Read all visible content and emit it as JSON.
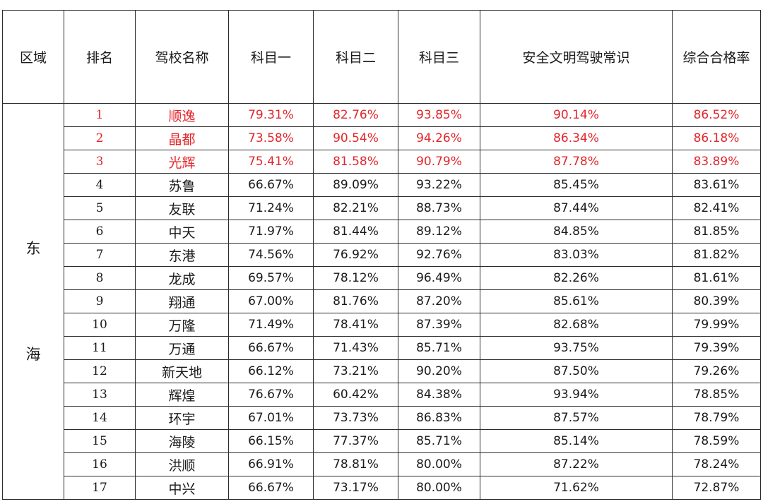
{
  "headers": [
    "区域",
    "排名",
    "驾校名称",
    "科目一",
    "科目二",
    "科目三",
    "安全文明驾驶常识",
    "综合合格率"
  ],
  "region": {
    "line1": "东",
    "line2": "海"
  },
  "highlight_color": "#e3262b",
  "rows": [
    {
      "rank": "1",
      "name": "顺逸",
      "k1": "79.31%",
      "k2": "82.76%",
      "k3": "93.85%",
      "safety": "90.14%",
      "overall": "86.52%",
      "top": true
    },
    {
      "rank": "2",
      "name": "晶都",
      "k1": "73.58%",
      "k2": "90.54%",
      "k3": "94.26%",
      "safety": "86.34%",
      "overall": "86.18%",
      "top": true
    },
    {
      "rank": "3",
      "name": "光辉",
      "k1": "75.41%",
      "k2": "81.58%",
      "k3": "90.79%",
      "safety": "87.78%",
      "overall": "83.89%",
      "top": true
    },
    {
      "rank": "4",
      "name": "苏鲁",
      "k1": "66.67%",
      "k2": "89.09%",
      "k3": "93.22%",
      "safety": "85.45%",
      "overall": "83.61%",
      "top": false
    },
    {
      "rank": "5",
      "name": "友联",
      "k1": "71.24%",
      "k2": "82.21%",
      "k3": "88.73%",
      "safety": "87.44%",
      "overall": "82.41%",
      "top": false
    },
    {
      "rank": "6",
      "name": "中天",
      "k1": "71.97%",
      "k2": "81.44%",
      "k3": "89.12%",
      "safety": "84.85%",
      "overall": "81.85%",
      "top": false
    },
    {
      "rank": "7",
      "name": "东港",
      "k1": "74.56%",
      "k2": "76.92%",
      "k3": "92.76%",
      "safety": "83.03%",
      "overall": "81.82%",
      "top": false
    },
    {
      "rank": "8",
      "name": "龙成",
      "k1": "69.57%",
      "k2": "78.12%",
      "k3": "96.49%",
      "safety": "82.26%",
      "overall": "81.61%",
      "top": false
    },
    {
      "rank": "9",
      "name": "翔通",
      "k1": "67.00%",
      "k2": "81.76%",
      "k3": "87.20%",
      "safety": "85.61%",
      "overall": "80.39%",
      "top": false
    },
    {
      "rank": "10",
      "name": "万隆",
      "k1": "71.49%",
      "k2": "78.41%",
      "k3": "87.39%",
      "safety": "82.68%",
      "overall": "79.99%",
      "top": false
    },
    {
      "rank": "11",
      "name": "万通",
      "k1": "66.67%",
      "k2": "71.43%",
      "k3": "85.71%",
      "safety": "93.75%",
      "overall": "79.39%",
      "top": false
    },
    {
      "rank": "12",
      "name": "新天地",
      "k1": "66.12%",
      "k2": "73.21%",
      "k3": "90.20%",
      "safety": "87.50%",
      "overall": "79.26%",
      "top": false
    },
    {
      "rank": "13",
      "name": "辉煌",
      "k1": "76.67%",
      "k2": "60.42%",
      "k3": "84.38%",
      "safety": "93.94%",
      "overall": "78.85%",
      "top": false
    },
    {
      "rank": "14",
      "name": "环宇",
      "k1": "67.01%",
      "k2": "73.73%",
      "k3": "86.83%",
      "safety": "87.57%",
      "overall": "78.79%",
      "top": false
    },
    {
      "rank": "15",
      "name": "海陵",
      "k1": "66.15%",
      "k2": "77.37%",
      "k3": "85.71%",
      "safety": "85.14%",
      "overall": "78.59%",
      "top": false
    },
    {
      "rank": "16",
      "name": "洪顺",
      "k1": "66.91%",
      "k2": "78.81%",
      "k3": "80.00%",
      "safety": "87.22%",
      "overall": "78.24%",
      "top": false
    },
    {
      "rank": "17",
      "name": "中兴",
      "k1": "66.67%",
      "k2": "73.17%",
      "k3": "80.00%",
      "safety": "71.62%",
      "overall": "72.87%",
      "top": false
    }
  ]
}
